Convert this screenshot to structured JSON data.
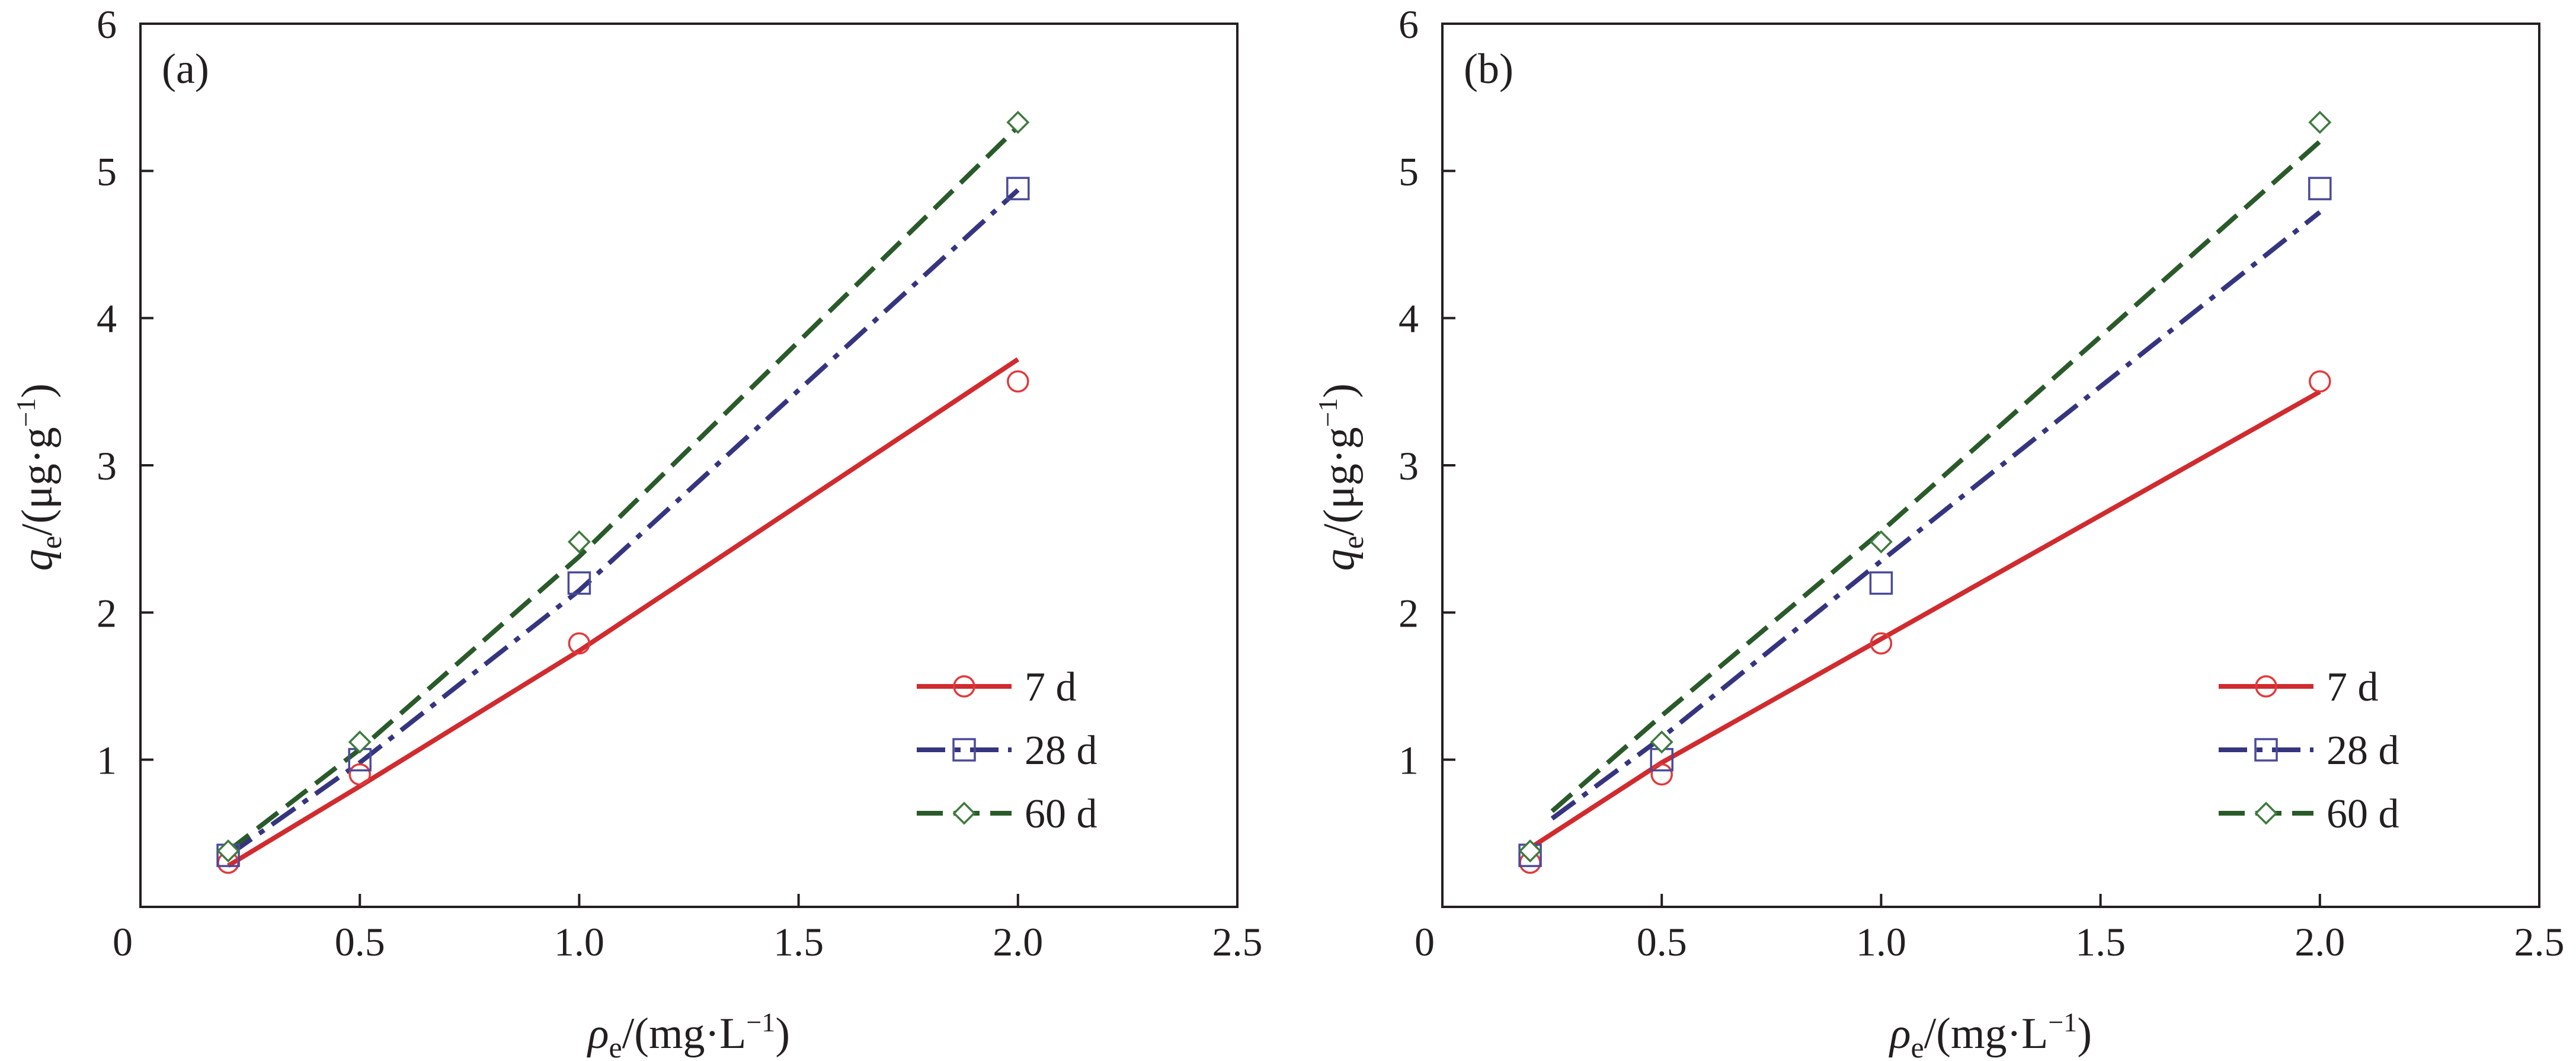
{
  "chart_data": [
    {
      "type": "scatter",
      "panel_label": "(a)",
      "xlabel": {
        "symbol": "ρ",
        "subscript": "e",
        "unit_prefix": "/(mg·L",
        "superscript": "−1",
        "unit_suffix": ")"
      },
      "ylabel": {
        "symbol": "q",
        "subscript": "e",
        "unit_prefix": "/(μg·g",
        "superscript": "−1",
        "unit_suffix": ")"
      },
      "xlim": [
        0,
        2.5
      ],
      "ylim": [
        0,
        6
      ],
      "x_ticks": [
        0,
        0.5,
        1.0,
        1.5,
        2.0,
        2.5
      ],
      "x_tick_labels": [
        "0",
        "0.5",
        "1.0",
        "1.5",
        "2.0",
        "2.5"
      ],
      "y_ticks": [
        1,
        2,
        3,
        4,
        5,
        6
      ],
      "y_tick_labels": [
        "1",
        "2",
        "3",
        "4",
        "5",
        "6"
      ],
      "grid": false,
      "legend_position": "lower-right",
      "series": [
        {
          "name": "7 d",
          "marker": "circle",
          "color": "#e0393c",
          "line_color": "#d02b2f",
          "dash": "solid",
          "points": [
            [
              0.2,
              0.3
            ],
            [
              0.5,
              0.9
            ],
            [
              1.0,
              1.79
            ],
            [
              2.0,
              3.57
            ]
          ],
          "fit": [
            [
              0.2,
              0.28
            ],
            [
              0.5,
              0.82
            ],
            [
              1.0,
              1.74
            ],
            [
              2.0,
              3.72
            ]
          ]
        },
        {
          "name": "28 d",
          "marker": "square",
          "color": "#4a4a9a",
          "line_color": "#35357f",
          "dash": "dashdot",
          "points": [
            [
              0.2,
              0.35
            ],
            [
              0.5,
              1.0
            ],
            [
              1.0,
              2.2
            ],
            [
              2.0,
              4.88
            ]
          ],
          "fit": [
            [
              0.2,
              0.35
            ],
            [
              0.5,
              0.98
            ],
            [
              1.0,
              2.15
            ],
            [
              2.0,
              4.87
            ]
          ]
        },
        {
          "name": "60 d",
          "marker": "diamond",
          "color": "#3f7a3f",
          "line_color": "#2a5a2a",
          "dash": "dashed",
          "points": [
            [
              0.2,
              0.38
            ],
            [
              0.5,
              1.12
            ],
            [
              1.0,
              2.48
            ],
            [
              2.0,
              5.33
            ]
          ],
          "fit": [
            [
              0.2,
              0.38
            ],
            [
              0.5,
              1.07
            ],
            [
              1.0,
              2.38
            ],
            [
              2.0,
              5.3
            ]
          ]
        }
      ]
    },
    {
      "type": "scatter",
      "panel_label": "(b)",
      "xlabel": {
        "symbol": "ρ",
        "subscript": "e",
        "unit_prefix": "/(mg·L",
        "superscript": "−1",
        "unit_suffix": ")"
      },
      "ylabel": {
        "symbol": "q",
        "subscript": "e",
        "unit_prefix": "/(μg·g",
        "superscript": "−1",
        "unit_suffix": ")"
      },
      "xlim": [
        0,
        2.5
      ],
      "ylim": [
        0,
        6
      ],
      "x_ticks": [
        0,
        0.5,
        1.0,
        1.5,
        2.0,
        2.5
      ],
      "x_tick_labels": [
        "0",
        "0.5",
        "1.0",
        "1.5",
        "2.0",
        "2.5"
      ],
      "y_ticks": [
        1,
        2,
        3,
        4,
        5,
        6
      ],
      "y_tick_labels": [
        "1",
        "2",
        "3",
        "4",
        "5",
        "6"
      ],
      "grid": false,
      "legend_position": "lower-right",
      "series": [
        {
          "name": "7 d",
          "marker": "circle",
          "color": "#e0393c",
          "line_color": "#d02b2f",
          "dash": "solid",
          "points": [
            [
              0.2,
              0.3
            ],
            [
              0.5,
              0.9
            ],
            [
              1.0,
              1.79
            ],
            [
              2.0,
              3.57
            ]
          ],
          "fit": [
            [
              0.2,
              0.4
            ],
            [
              0.5,
              0.98
            ],
            [
              1.0,
              1.82
            ],
            [
              2.0,
              3.5
            ]
          ]
        },
        {
          "name": "28 d",
          "marker": "square",
          "color": "#4a4a9a",
          "line_color": "#35357f",
          "dash": "dashdot",
          "points": [
            [
              0.2,
              0.35
            ],
            [
              0.5,
              1.0
            ],
            [
              1.0,
              2.2
            ],
            [
              2.0,
              4.88
            ]
          ],
          "fit": [
            [
              0.25,
              0.6
            ],
            [
              0.5,
              1.15
            ],
            [
              1.0,
              2.35
            ],
            [
              2.0,
              4.72
            ]
          ]
        },
        {
          "name": "60 d",
          "marker": "diamond",
          "color": "#3f7a3f",
          "line_color": "#2a5a2a",
          "dash": "dashed",
          "points": [
            [
              0.2,
              0.38
            ],
            [
              0.5,
              1.12
            ],
            [
              1.0,
              2.48
            ],
            [
              2.0,
              5.33
            ]
          ],
          "fit": [
            [
              0.25,
              0.65
            ],
            [
              0.5,
              1.3
            ],
            [
              1.0,
              2.55
            ],
            [
              2.0,
              5.2
            ]
          ]
        }
      ]
    }
  ]
}
